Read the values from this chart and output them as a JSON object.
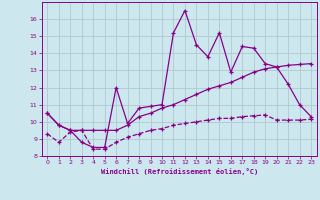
{
  "xlabel": "Windchill (Refroidissement éolien,°C)",
  "background_color": "#cce8ee",
  "grid_color": "#b0c8d0",
  "line_color": "#880088",
  "xlim": [
    -0.5,
    23.5
  ],
  "ylim": [
    8,
    17
  ],
  "xticks": [
    0,
    1,
    2,
    3,
    4,
    5,
    6,
    7,
    8,
    9,
    10,
    11,
    12,
    13,
    14,
    15,
    16,
    17,
    18,
    19,
    20,
    21,
    22,
    23
  ],
  "yticks": [
    8,
    9,
    10,
    11,
    12,
    13,
    14,
    15,
    16
  ],
  "line1_x": [
    0,
    1,
    2,
    3,
    4,
    5,
    6,
    7,
    8,
    9,
    10,
    11,
    12,
    13,
    14,
    15,
    16,
    17,
    18,
    19,
    20,
    21,
    22,
    23
  ],
  "line1_y": [
    10.5,
    9.8,
    9.5,
    8.8,
    8.5,
    8.5,
    12.0,
    9.9,
    10.8,
    10.9,
    11.0,
    15.2,
    16.5,
    14.5,
    13.8,
    15.2,
    12.9,
    14.4,
    14.3,
    13.4,
    13.2,
    12.2,
    11.0,
    10.3
  ],
  "line2_x": [
    0,
    1,
    2,
    3,
    4,
    5,
    6,
    7,
    8,
    9,
    10,
    11,
    12,
    13,
    14,
    15,
    16,
    17,
    18,
    19,
    20,
    21,
    22,
    23
  ],
  "line2_y": [
    10.5,
    9.8,
    9.5,
    9.5,
    9.5,
    9.5,
    9.5,
    9.8,
    10.3,
    10.5,
    10.8,
    11.0,
    11.3,
    11.6,
    11.9,
    12.1,
    12.3,
    12.6,
    12.9,
    13.1,
    13.2,
    13.3,
    13.35,
    13.4
  ],
  "line3_x": [
    0,
    1,
    2,
    3,
    4,
    5,
    6,
    7,
    8,
    9,
    10,
    11,
    12,
    13,
    14,
    15,
    16,
    17,
    18,
    19,
    20,
    21,
    22,
    23
  ],
  "line3_y": [
    9.3,
    8.8,
    9.4,
    9.5,
    8.4,
    8.4,
    8.8,
    9.1,
    9.3,
    9.5,
    9.6,
    9.8,
    9.9,
    10.0,
    10.1,
    10.2,
    10.2,
    10.3,
    10.35,
    10.4,
    10.1,
    10.1,
    10.1,
    10.15
  ]
}
